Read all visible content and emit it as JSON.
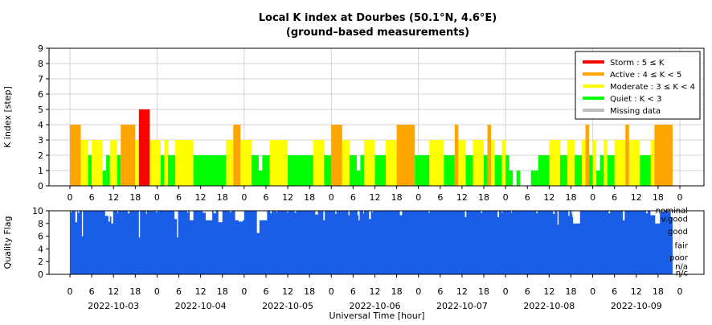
{
  "header": {
    "title": "Local K index at Dourbes (50.1°N, 4.6°E)",
    "subtitle": "(ground–based measurements)"
  },
  "colors": {
    "storm": "#ff0000",
    "active": "#ffa500",
    "moderate": "#ffff00",
    "quiet": "#00ff00",
    "missing": "#bebebe",
    "quality": "#1a5ee8",
    "grid": "#d3d3d3"
  },
  "chart_data": [
    {
      "type": "bar",
      "name": "k-index",
      "ylabel": "K index [step]",
      "ylim": [
        0,
        9
      ],
      "yticks": [
        "0",
        "1",
        "2",
        "3",
        "4",
        "5",
        "6",
        "7",
        "8",
        "9"
      ],
      "xlim_hours": [
        0,
        168
      ],
      "x_unit": "hours since 2022-10-03 00:00 UT",
      "grid": true,
      "legend_position": "top-right",
      "legend": [
        {
          "label": "Storm : 5 ≤ K",
          "color_key": "storm"
        },
        {
          "label": "Active : 4 ≤ K < 5",
          "color_key": "active"
        },
        {
          "label": "Moderate : 3 ≤ K < 4",
          "color_key": "moderate"
        },
        {
          "label": "Quiet : K < 3",
          "color_key": "quiet"
        },
        {
          "label": "Missing data",
          "color_key": "missing"
        }
      ],
      "bars": [
        [
          0,
          3,
          4
        ],
        [
          3,
          5,
          3
        ],
        [
          5,
          6,
          2
        ],
        [
          6,
          9,
          3
        ],
        [
          9,
          10,
          1
        ],
        [
          10,
          11,
          2
        ],
        [
          11,
          13,
          3
        ],
        [
          13,
          14,
          2
        ],
        [
          14,
          18,
          4
        ],
        [
          18,
          19,
          3
        ],
        [
          19,
          22,
          5
        ],
        [
          22,
          25,
          3
        ],
        [
          25,
          26,
          2
        ],
        [
          26,
          27,
          3
        ],
        [
          27,
          29,
          2
        ],
        [
          29,
          34,
          3
        ],
        [
          34,
          43,
          2
        ],
        [
          43,
          45,
          3
        ],
        [
          45,
          47,
          4
        ],
        [
          47,
          50,
          3
        ],
        [
          50,
          52,
          2
        ],
        [
          52,
          53,
          1
        ],
        [
          53,
          55,
          2
        ],
        [
          55,
          60,
          3
        ],
        [
          60,
          67,
          2
        ],
        [
          67,
          70,
          3
        ],
        [
          70,
          72,
          2
        ],
        [
          72,
          75,
          4
        ],
        [
          75,
          77,
          3
        ],
        [
          77,
          79,
          2
        ],
        [
          79,
          80,
          1
        ],
        [
          80,
          81,
          2
        ],
        [
          81,
          84,
          3
        ],
        [
          84,
          87,
          2
        ],
        [
          87,
          90,
          3
        ],
        [
          90,
          95,
          4
        ],
        [
          95,
          99,
          2
        ],
        [
          99,
          103,
          3
        ],
        [
          103,
          106,
          2
        ],
        [
          106,
          107,
          4
        ],
        [
          107,
          109,
          3
        ],
        [
          109,
          111,
          2
        ],
        [
          111,
          114,
          3
        ],
        [
          114,
          115,
          2
        ],
        [
          115,
          116,
          4
        ],
        [
          116,
          117,
          3
        ],
        [
          117,
          119,
          2
        ],
        [
          119,
          120,
          3
        ],
        [
          120,
          121,
          2
        ],
        [
          121,
          122,
          1
        ],
        [
          122,
          123,
          0
        ],
        [
          123,
          124,
          1
        ],
        [
          124,
          127,
          0
        ],
        [
          127,
          129,
          1
        ],
        [
          129,
          132,
          2
        ],
        [
          132,
          135,
          3
        ],
        [
          135,
          137,
          2
        ],
        [
          137,
          139,
          3
        ],
        [
          139,
          141,
          2
        ],
        [
          141,
          142,
          3
        ],
        [
          142,
          143,
          4
        ],
        [
          143,
          144,
          2
        ],
        [
          144,
          145,
          3
        ],
        [
          145,
          146,
          1
        ],
        [
          146,
          147,
          2
        ],
        [
          147,
          148,
          3
        ],
        [
          148,
          150,
          2
        ],
        [
          150,
          153,
          3
        ],
        [
          153,
          154,
          4
        ],
        [
          154,
          157,
          3
        ],
        [
          157,
          160,
          2
        ],
        [
          160,
          161,
          3
        ],
        [
          161,
          166,
          4
        ]
      ]
    },
    {
      "type": "bar",
      "name": "quality-flag",
      "ylabel": "Quality Flag",
      "xlabel": "Universal Time [hour]",
      "ylim": [
        0,
        10
      ],
      "yticks": [
        "0",
        "2",
        "4",
        "6",
        "8",
        "10"
      ],
      "category_labels": [
        "nominal",
        "v.good",
        "good",
        "fair",
        "poor",
        "n/a",
        "n/c"
      ],
      "hour_ticks": [
        "0",
        "6",
        "12",
        "18",
        "0",
        "6",
        "12",
        "18",
        "0",
        "6",
        "12",
        "18",
        "0",
        "6",
        "12",
        "18",
        "0",
        "6",
        "12",
        "18",
        "0",
        "6",
        "12",
        "18",
        "0",
        "6",
        "12",
        "18",
        "0"
      ],
      "dates": [
        "2022-10-03",
        "2022-10-04",
        "2022-10-05",
        "2022-10-06",
        "2022-10-07",
        "2022-10-08",
        "2022-10-09"
      ],
      "baseline_value": 10,
      "dips": [
        [
          0.3,
          0.6,
          9.8
        ],
        [
          1.5,
          2.0,
          8.2
        ],
        [
          2.2,
          2.6,
          9.7
        ],
        [
          3.3,
          3.6,
          6.0
        ],
        [
          9.7,
          10.6,
          9.2
        ],
        [
          10.6,
          11.0,
          8.3
        ],
        [
          11.0,
          11.4,
          9.1
        ],
        [
          11.4,
          11.9,
          8.0
        ],
        [
          13.1,
          13.3,
          9.7
        ],
        [
          16.0,
          16.4,
          9.6
        ],
        [
          19.0,
          19.3,
          5.8
        ],
        [
          21.0,
          21.2,
          9.5
        ],
        [
          23.7,
          24.1,
          9.8
        ],
        [
          28.8,
          29.5,
          8.7
        ],
        [
          29.5,
          29.8,
          5.8
        ],
        [
          32.3,
          32.6,
          9.7
        ],
        [
          33.0,
          34.0,
          8.5
        ],
        [
          36.6,
          37.4,
          9.7
        ],
        [
          37.4,
          39.2,
          8.5
        ],
        [
          39.6,
          40.2,
          9.6
        ],
        [
          40.9,
          42.0,
          8.2
        ],
        [
          44.0,
          44.5,
          9.8
        ],
        [
          45.5,
          46.5,
          8.5
        ],
        [
          46.5,
          47.6,
          8.3
        ],
        [
          47.6,
          48.0,
          8.5
        ],
        [
          51.5,
          52.2,
          6.5
        ],
        [
          52.2,
          54.3,
          8.5
        ],
        [
          55.2,
          55.6,
          9.6
        ],
        [
          56.8,
          57.1,
          9.8
        ],
        [
          59.9,
          60.1,
          9.7
        ],
        [
          61.9,
          62.3,
          9.7
        ],
        [
          67.6,
          68.3,
          9.4
        ],
        [
          69.8,
          70.2,
          8.5
        ],
        [
          73.1,
          73.4,
          9.5
        ],
        [
          76.7,
          77.0,
          9.3
        ],
        [
          79.2,
          79.5,
          9.3
        ],
        [
          79.5,
          79.8,
          8.5
        ],
        [
          80.8,
          81.0,
          9.6
        ],
        [
          82.4,
          82.9,
          8.7
        ],
        [
          83.2,
          83.5,
          9.8
        ],
        [
          90.9,
          91.5,
          9.3
        ],
        [
          98.8,
          99.1,
          9.7
        ],
        [
          108.8,
          109.2,
          9.0
        ],
        [
          113.2,
          113.6,
          9.7
        ],
        [
          117.8,
          118.2,
          9.0
        ],
        [
          119.0,
          119.2,
          9.7
        ],
        [
          121.5,
          121.7,
          9.7
        ],
        [
          128.5,
          128.8,
          9.6
        ],
        [
          133.1,
          133.5,
          9.5
        ],
        [
          134.3,
          134.6,
          7.8
        ],
        [
          137.3,
          137.6,
          9.2
        ],
        [
          138.2,
          138.4,
          9.5
        ],
        [
          138.4,
          138.6,
          9.0
        ],
        [
          138.6,
          140.5,
          8.0
        ],
        [
          148.4,
          148.8,
          9.6
        ],
        [
          152.3,
          152.8,
          8.5
        ],
        [
          158.7,
          159.1,
          9.6
        ],
        [
          159.9,
          161.2,
          9.3
        ],
        [
          161.2,
          162.5,
          8.0
        ],
        [
          162.5,
          163.7,
          9.8
        ],
        [
          164.9,
          165.4,
          9.7
        ],
        [
          165.5,
          166.0,
          9.0
        ]
      ]
    }
  ]
}
